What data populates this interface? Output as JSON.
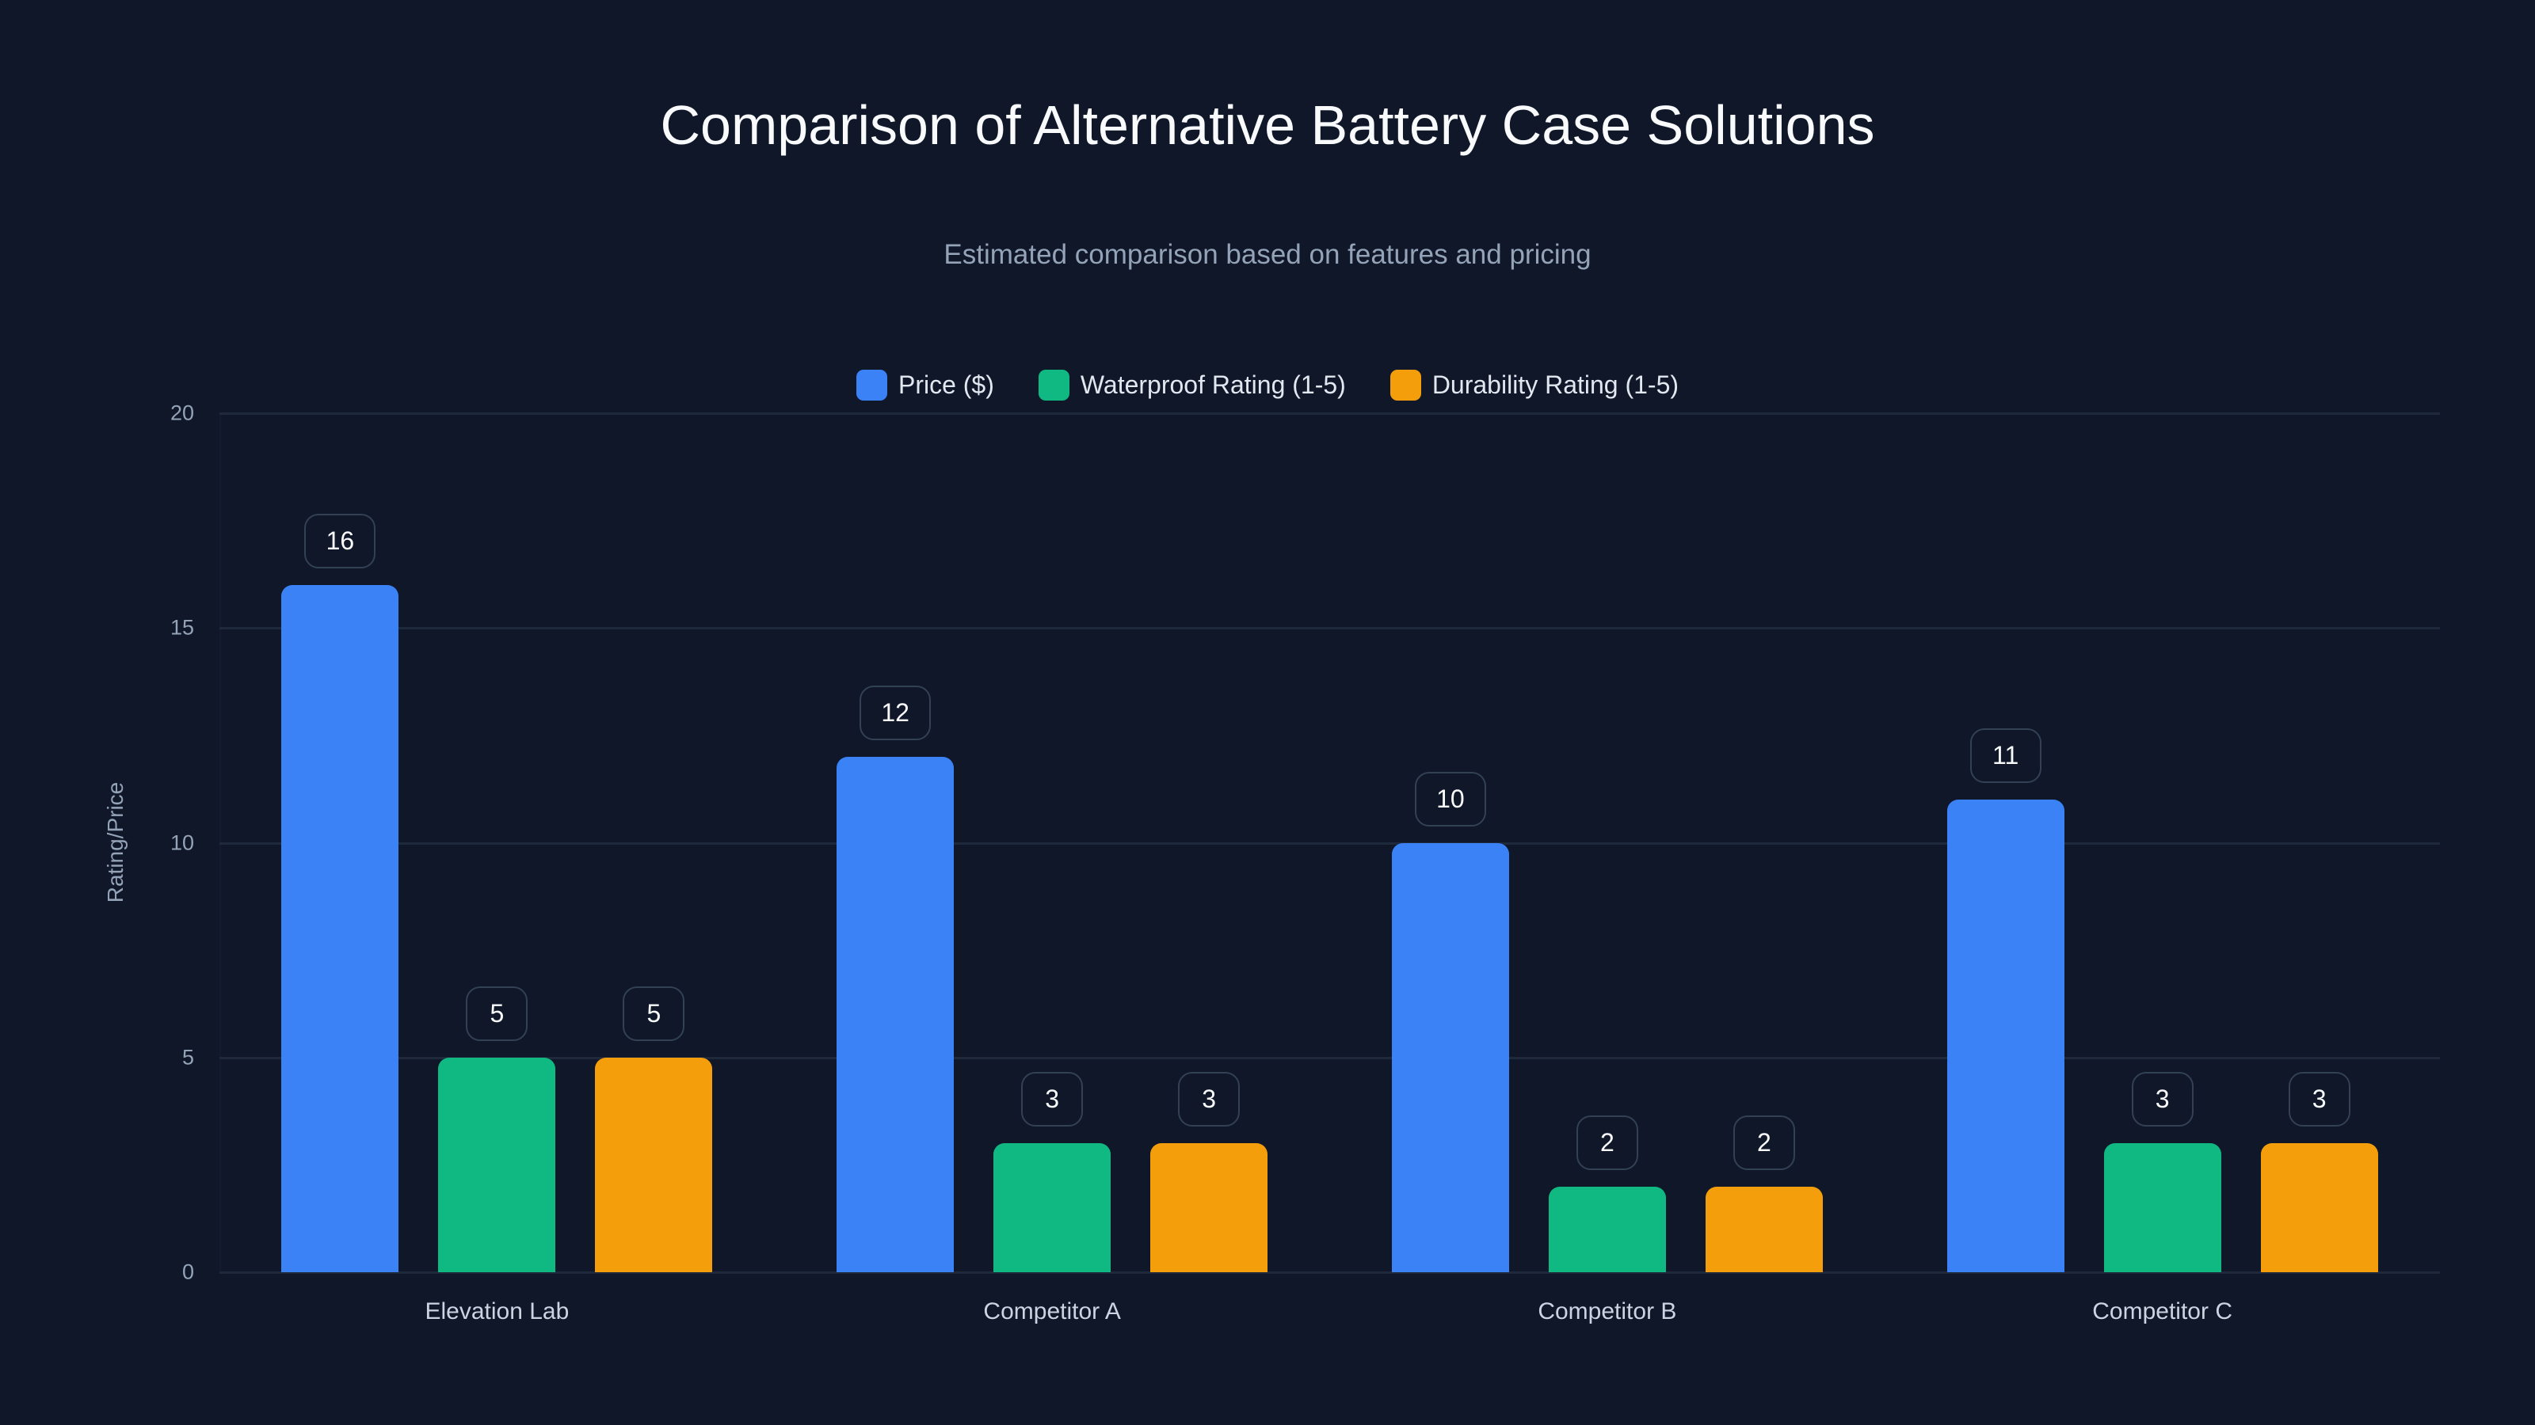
{
  "header": {
    "title": "Comparison of Alternative Battery Case Solutions",
    "subtitle": "Estimated comparison based on features and pricing"
  },
  "legend": [
    {
      "label": "Price ($)",
      "color": "#3b82f6"
    },
    {
      "label": "Waterproof Rating (1-5)",
      "color": "#10b981"
    },
    {
      "label": "Durability Rating (1-5)",
      "color": "#f59e0b"
    }
  ],
  "axis": {
    "y_title": "Rating/Price",
    "y_ticks": [
      "0",
      "5",
      "10",
      "15",
      "20"
    ]
  },
  "categories": [
    "Elevation Lab",
    "Competitor A",
    "Competitor B",
    "Competitor C"
  ],
  "chart_data": {
    "type": "bar",
    "title": "Comparison of Alternative Battery Case Solutions",
    "subtitle": "Estimated comparison based on features and pricing",
    "categories": [
      "Elevation Lab",
      "Competitor A",
      "Competitor B",
      "Competitor C"
    ],
    "series": [
      {
        "name": "Price ($)",
        "color": "#3b82f6",
        "values": [
          16,
          12,
          10,
          11
        ]
      },
      {
        "name": "Waterproof Rating (1-5)",
        "color": "#10b981",
        "values": [
          5,
          3,
          2,
          3
        ]
      },
      {
        "name": "Durability Rating (1-5)",
        "color": "#f59e0b",
        "values": [
          5,
          3,
          2,
          3
        ]
      }
    ],
    "xlabel": "",
    "ylabel": "Rating/Price",
    "ylim": [
      0,
      20
    ],
    "yticks": [
      0,
      5,
      10,
      15,
      20
    ],
    "grid": true,
    "legend_position": "top",
    "data_labels": true
  },
  "colors": {
    "background": "#0f1729",
    "gridline": "#1e293b",
    "text_primary": "#f8fafc",
    "text_secondary": "#94a3b8"
  }
}
